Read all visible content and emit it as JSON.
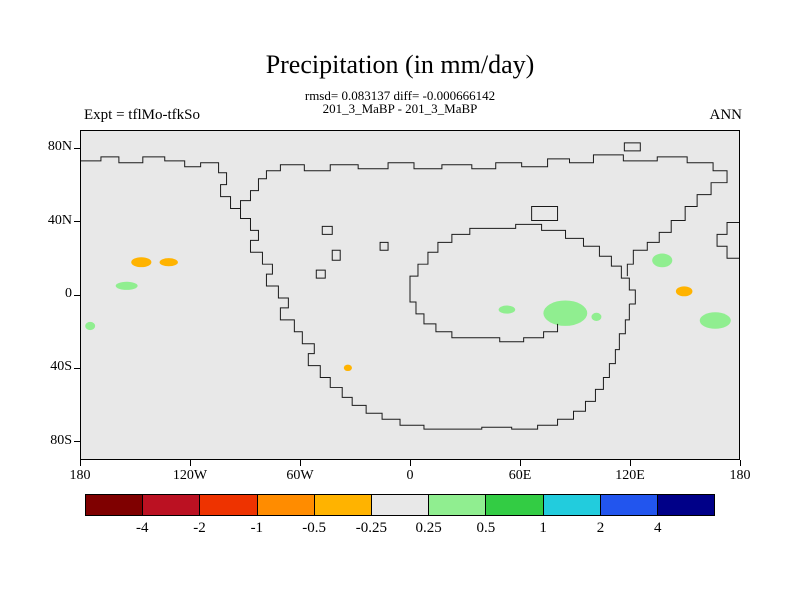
{
  "chart_data": {
    "type": "heatmap",
    "title": "Precipitation (in mm/day)",
    "stats_line": "rmsd= 0.083137 diff= -0.000666142",
    "comparison_line": "201_3_MaBP - 201_3_MaBP",
    "experiment_label": "Expt = tflMo-tfkSo",
    "season": "ANN",
    "rmsd": 0.083137,
    "diff": -0.000666142,
    "units": "mm/day",
    "projection": "longitude-latitude",
    "lon_range": [
      -180,
      180
    ],
    "lat_range": [
      -90,
      90
    ],
    "grid": false,
    "map_background": "#e8e8e8",
    "coastline_color": "#1a1a1a",
    "x_ticks": [
      {
        "lon": -180,
        "label": "180"
      },
      {
        "lon": -120,
        "label": "120W"
      },
      {
        "lon": -60,
        "label": "60W"
      },
      {
        "lon": 0,
        "label": "0"
      },
      {
        "lon": 60,
        "label": "60E"
      },
      {
        "lon": 120,
        "label": "120E"
      },
      {
        "lon": 180,
        "label": "180"
      }
    ],
    "y_ticks": [
      {
        "lat": 80,
        "label": "80N"
      },
      {
        "lat": 40,
        "label": "40N"
      },
      {
        "lat": 0,
        "label": "0"
      },
      {
        "lat": -40,
        "label": "40S"
      },
      {
        "lat": -80,
        "label": "80S"
      }
    ],
    "colorbar": {
      "position": "bottom",
      "levels": [
        -4,
        -2,
        -1,
        -0.5,
        -0.25,
        0.25,
        0.5,
        1,
        2,
        4
      ],
      "colors": [
        "#7f0000",
        "#bb1122",
        "#ee3300",
        "#ff8c00",
        "#ffb300",
        "#e8e8e8",
        "#90ee90",
        "#33cc44",
        "#22ccdd",
        "#2255ee",
        "#000088"
      ]
    },
    "anomaly_patches": [
      {
        "lon": -147,
        "lat": 18,
        "w_deg": 11,
        "h_deg": 5.5,
        "band": "-0.5 to -0.25"
      },
      {
        "lon": -132,
        "lat": 18,
        "w_deg": 10,
        "h_deg": 4.5,
        "band": "-0.5 to -0.25"
      },
      {
        "lon": -155,
        "lat": 5,
        "w_deg": 12,
        "h_deg": 4.5,
        "band": "0.25 to 0.5"
      },
      {
        "lon": -175,
        "lat": -17,
        "w_deg": 5.5,
        "h_deg": 4.5,
        "band": "0.25 to 0.5"
      },
      {
        "lon": -34,
        "lat": -40,
        "w_deg": 4.5,
        "h_deg": 3.5,
        "band": "-0.5 to -0.25"
      },
      {
        "lon": 53,
        "lat": -8,
        "w_deg": 9,
        "h_deg": 4.5,
        "band": "0.25 to 0.5"
      },
      {
        "lon": 85,
        "lat": -10,
        "w_deg": 24,
        "h_deg": 14,
        "band": "0.25 to 0.5"
      },
      {
        "lon": 102,
        "lat": -12,
        "w_deg": 5.5,
        "h_deg": 4.5,
        "band": "0.25 to 0.5"
      },
      {
        "lon": 138,
        "lat": 19,
        "w_deg": 11,
        "h_deg": 7.5,
        "band": "0.25 to 0.5"
      },
      {
        "lon": 150,
        "lat": 2,
        "w_deg": 9,
        "h_deg": 5.5,
        "band": "-0.5 to -0.25"
      },
      {
        "lon": 167,
        "lat": -14,
        "w_deg": 17,
        "h_deg": 9,
        "band": "0.25 to 0.5"
      }
    ]
  }
}
